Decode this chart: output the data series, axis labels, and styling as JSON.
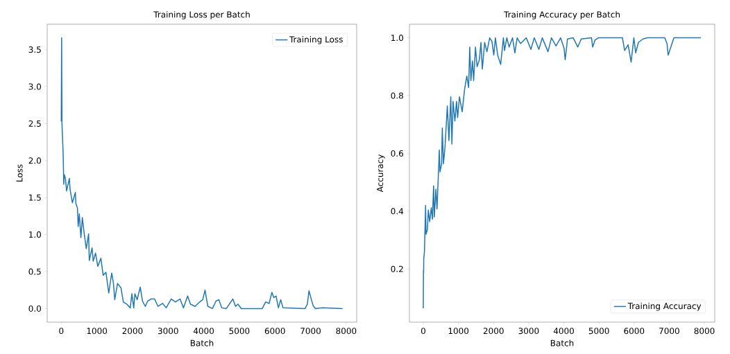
{
  "chart_data": [
    {
      "type": "line",
      "title": "Training Loss per Batch",
      "xlabel": "Batch",
      "ylabel": "Loss",
      "x": [
        0,
        10,
        20,
        52,
        70,
        85,
        117,
        150,
        228,
        247,
        312,
        396,
        410,
        455,
        475,
        507,
        552,
        592,
        637,
        702,
        767,
        787,
        865,
        897,
        962,
        1027,
        1112,
        1177,
        1255,
        1333,
        1417,
        1463,
        1502,
        1580,
        1677,
        1742,
        1840,
        1937,
        1983,
        2035,
        2067,
        2132,
        2217,
        2282,
        2360,
        2425,
        2522,
        2620,
        2717,
        2847,
        2945,
        3088,
        3205,
        3335,
        3432,
        3549,
        3627,
        3757,
        3887,
        3972,
        4037,
        4115,
        4245,
        4342,
        4427,
        4505,
        4635,
        4817,
        4895,
        4960,
        5057,
        5642,
        5740,
        5837,
        5915,
        5967,
        6032,
        6097,
        6162,
        6227,
        6845,
        6910,
        6955,
        7007,
        7072,
        7137,
        7332,
        7900
      ],
      "series": [
        {
          "name": "Training Loss",
          "color": "#1f77b4",
          "values": [
            2.53,
            3.66,
            2.5,
            2.11,
            1.68,
            1.81,
            1.76,
            1.59,
            1.76,
            1.61,
            1.43,
            1.57,
            1.42,
            1.36,
            1.11,
            1.28,
            0.96,
            1.23,
            1.04,
            0.81,
            1.01,
            0.65,
            0.82,
            0.64,
            0.75,
            0.57,
            0.68,
            0.45,
            0.49,
            0.21,
            0.48,
            0.35,
            0.12,
            0.34,
            0.28,
            0.09,
            0.06,
            0.01,
            0.2,
            0.01,
            0.2,
            0.12,
            0.29,
            0.1,
            0.03,
            0.1,
            0.13,
            0.13,
            0.03,
            0.07,
            0.01,
            0.13,
            0.09,
            0.13,
            0.01,
            0.17,
            0.06,
            0.03,
            0.09,
            0.12,
            0.25,
            0.03,
            0,
            0.1,
            0.12,
            0.01,
            0,
            0.13,
            0.03,
            0.06,
            0,
            0,
            0.09,
            0.07,
            0.22,
            0.15,
            0.17,
            0.01,
            0.12,
            0.01,
            0,
            0.06,
            0.24,
            0.15,
            0.04,
            0,
            0.01,
            0
          ]
        }
      ],
      "xlim": [
        -395,
        8295
      ],
      "ylim": [
        -0.183,
        3.843
      ],
      "xticks": [
        0,
        1000,
        2000,
        3000,
        4000,
        5000,
        6000,
        7000,
        8000
      ],
      "yticks": [
        {
          "value": 0,
          "label": "0.0"
        },
        0.5,
        {
          "value": 1,
          "label": "1.0"
        },
        1.5,
        {
          "value": 2,
          "label": "2.0"
        },
        2.5,
        {
          "value": 3,
          "label": "3.0"
        },
        3.5
      ],
      "legend": "top right",
      "marker": "none",
      "line_style": "solid",
      "grid": false
    },
    {
      "type": "line",
      "title": "Training Accuracy per Batch",
      "xlabel": "Batch",
      "ylabel": "Accuracy",
      "x": [
        0,
        5,
        10,
        13,
        33,
        65,
        78,
        117,
        143,
        182,
        228,
        260,
        293,
        313,
        358,
        391,
        423,
        456,
        475,
        521,
        541,
        573,
        619,
        684,
        730,
        782,
        814,
        847,
        899,
        945,
        977,
        1029,
        1107,
        1173,
        1238,
        1290,
        1322,
        1355,
        1400,
        1433,
        1485,
        1531,
        1596,
        1641,
        1680,
        1746,
        1811,
        1889,
        1954,
        2006,
        2052,
        2117,
        2202,
        2280,
        2312,
        2378,
        2443,
        2540,
        2606,
        2671,
        2768,
        2931,
        3062,
        3159,
        3290,
        3387,
        3550,
        3648,
        3778,
        3908,
        4006,
        4039,
        4104,
        4267,
        4397,
        4495,
        4788,
        4820,
        4886,
        4983,
        5667,
        5732,
        5830,
        5915,
        5993,
        6045,
        6123,
        6253,
        6384,
        6872,
        6937,
        6970,
        7068,
        7133,
        7900
      ],
      "series": [
        {
          "name": "Training Accuracy",
          "color": "#1f77b4",
          "values": [
            0.064,
            0.196,
            0.188,
            0.236,
            0.26,
            0.42,
            0.32,
            0.336,
            0.404,
            0.364,
            0.412,
            0.372,
            0.488,
            0.38,
            0.476,
            0.408,
            0.508,
            0.612,
            0.536,
            0.564,
            0.688,
            0.564,
            0.624,
            0.764,
            0.644,
            0.796,
            0.632,
            0.78,
            0.712,
            0.78,
            0.724,
            0.796,
            0.744,
            0.82,
            0.868,
            0.828,
            0.968,
            0.852,
            0.92,
            0.852,
            0.968,
            0.9,
            0.924,
            0.984,
            0.892,
            0.984,
            0.952,
            1.0,
            0.988,
            0.94,
            1.0,
            0.94,
            0.908,
            1.0,
            0.956,
            1.0,
            0.968,
            1.0,
            0.948,
            1.0,
            0.98,
            1.0,
            0.96,
            1.0,
            0.96,
            1.0,
            0.952,
            1.0,
            0.972,
            1.0,
            0.964,
            0.924,
            0.996,
            1.0,
            0.968,
            0.996,
            1.0,
            0.968,
            0.992,
            1.0,
            1.0,
            0.956,
            0.976,
            0.916,
            1.0,
            0.948,
            0.984,
            0.996,
            1.0,
            1.0,
            0.98,
            0.94,
            0.976,
            1.0,
            1.0
          ]
        }
      ],
      "xlim": [
        -395,
        8295
      ],
      "ylim": [
        0.016,
        1.047
      ],
      "xticks": [
        0,
        1000,
        2000,
        3000,
        4000,
        5000,
        6000,
        7000,
        8000
      ],
      "yticks": [
        0.2,
        0.4,
        0.6,
        0.8,
        {
          "value": 1,
          "label": "1.0"
        }
      ],
      "legend": "bottom right",
      "marker": "none",
      "line_style": "solid",
      "grid": false
    }
  ]
}
